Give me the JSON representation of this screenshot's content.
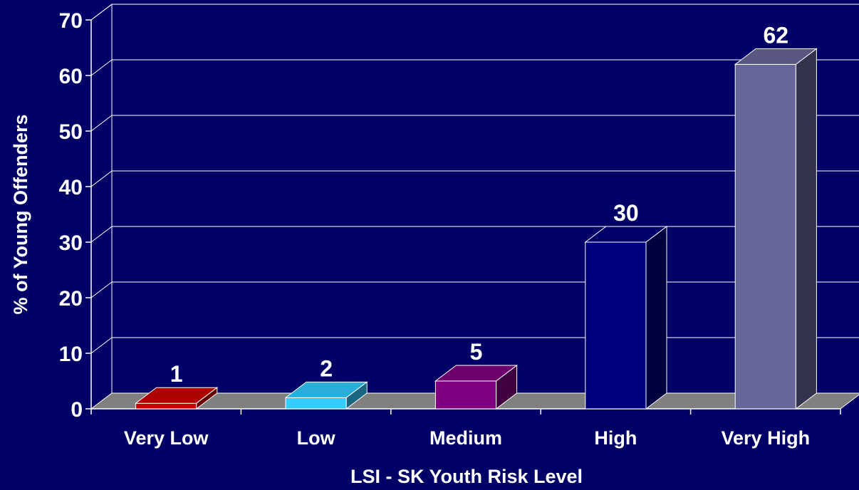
{
  "chart_data": {
    "type": "bar",
    "categories": [
      "Very Low",
      "Low",
      "Medium",
      "High",
      "Very High"
    ],
    "values": [
      1,
      2,
      5,
      30,
      62
    ],
    "data_labels": [
      "1",
      "2",
      "5",
      "30",
      "62"
    ],
    "xlabel": "LSI - SK Youth Risk Level",
    "ylabel": "% of Young Offenders",
    "ylim": [
      0,
      70
    ],
    "yticks": [
      0,
      10,
      20,
      30,
      40,
      50,
      60,
      70
    ],
    "grid": true,
    "three_d": true,
    "bar_colors": [
      "#cc0000",
      "#33ccff",
      "#800080",
      "#000080",
      "#666699"
    ],
    "background": "#000066",
    "floor_color": "#808080"
  }
}
